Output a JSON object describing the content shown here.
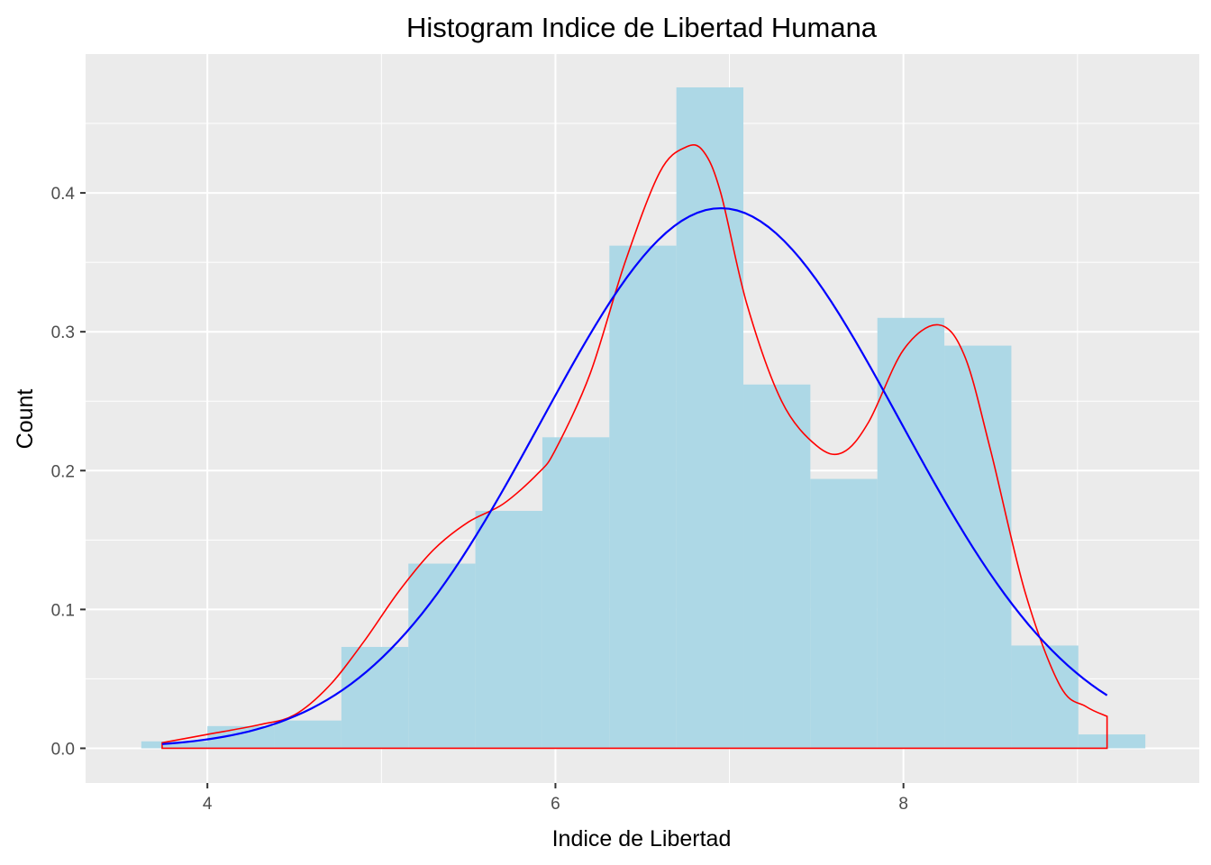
{
  "chart_data": {
    "type": "bar",
    "title": "Histogram Indice de Libertad Humana",
    "xlabel": "Indice de Libertad",
    "ylabel": "Count",
    "xlim": [
      3.3,
      9.7
    ],
    "ylim": [
      -0.025,
      0.5
    ],
    "xticks": [
      4,
      6,
      8
    ],
    "xtick_labels": [
      "4",
      "6",
      "8"
    ],
    "yticks": [
      0.0,
      0.1,
      0.2,
      0.3,
      0.4
    ],
    "ytick_labels": [
      "0.0",
      "0.1",
      "0.2",
      "0.3",
      "0.4"
    ],
    "grid": true,
    "colors": {
      "panel": "#ebebeb",
      "grid": "#ffffff",
      "bars": "#add8e6",
      "density": "#ff0000",
      "normal": "#0000ff"
    },
    "bins": [
      {
        "x0": 3.62,
        "x1": 4.0,
        "value": 0.005
      },
      {
        "x0": 4.0,
        "x1": 4.385,
        "value": 0.016
      },
      {
        "x0": 4.385,
        "x1": 4.77,
        "value": 0.02
      },
      {
        "x0": 4.77,
        "x1": 5.155,
        "value": 0.073
      },
      {
        "x0": 5.155,
        "x1": 5.54,
        "value": 0.133
      },
      {
        "x0": 5.54,
        "x1": 5.925,
        "value": 0.171
      },
      {
        "x0": 5.925,
        "x1": 6.31,
        "value": 0.224
      },
      {
        "x0": 6.31,
        "x1": 6.695,
        "value": 0.362
      },
      {
        "x0": 6.695,
        "x1": 7.08,
        "value": 0.476
      },
      {
        "x0": 7.08,
        "x1": 7.465,
        "value": 0.262
      },
      {
        "x0": 7.465,
        "x1": 7.85,
        "value": 0.194
      },
      {
        "x0": 7.85,
        "x1": 8.235,
        "value": 0.31
      },
      {
        "x0": 8.235,
        "x1": 8.62,
        "value": 0.29
      },
      {
        "x0": 8.62,
        "x1": 9.005,
        "value": 0.074
      },
      {
        "x0": 9.005,
        "x1": 9.39,
        "value": 0.01
      }
    ],
    "density_curve": {
      "x": [
        3.74,
        4.0,
        4.3,
        4.5,
        4.7,
        4.9,
        5.1,
        5.3,
        5.5,
        5.7,
        5.9,
        6.0,
        6.2,
        6.4,
        6.6,
        6.75,
        6.85,
        6.95,
        7.1,
        7.3,
        7.5,
        7.65,
        7.8,
        8.0,
        8.2,
        8.35,
        8.5,
        8.7,
        8.9,
        9.05,
        9.17
      ],
      "y": [
        0.004,
        0.01,
        0.017,
        0.024,
        0.045,
        0.077,
        0.113,
        0.143,
        0.163,
        0.176,
        0.198,
        0.215,
        0.27,
        0.35,
        0.415,
        0.433,
        0.43,
        0.4,
        0.32,
        0.25,
        0.218,
        0.213,
        0.235,
        0.287,
        0.305,
        0.283,
        0.215,
        0.112,
        0.045,
        0.03,
        0.023
      ]
    },
    "normal_curve": {
      "mean": 6.95,
      "sd": 1.03,
      "peak": 0.389,
      "x_range": [
        3.74,
        9.17
      ]
    }
  }
}
